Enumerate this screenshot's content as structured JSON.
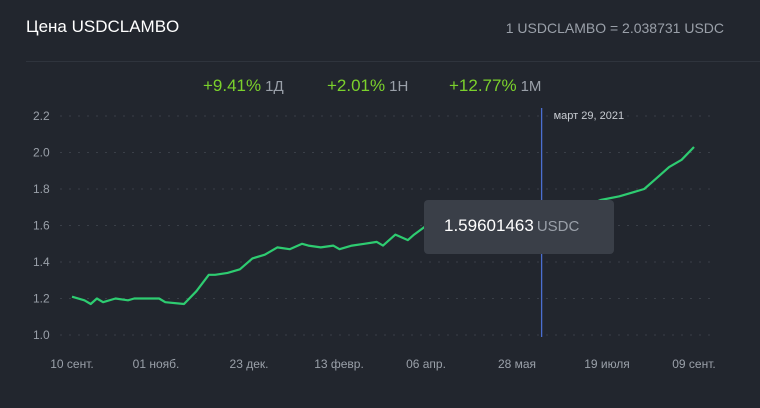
{
  "header": {
    "title": "Цена USDCLAMBO",
    "rate": "1 USDCLAMBO = 2.038731 USDC"
  },
  "changes": [
    {
      "value": "+9.41%",
      "period": "1Д"
    },
    {
      "value": "+2.01%",
      "period": "1Н"
    },
    {
      "value": "+12.77%",
      "period": "1М"
    }
  ],
  "tooltip": {
    "date": "март 29, 2021",
    "price": "1.59601463",
    "unit": "USDC"
  },
  "colors": {
    "background": "#22262e",
    "line": "#2ecc71",
    "positive": "#7bd12c",
    "crosshair": "#4a6fd1",
    "tooltip_bg": "#3a3f48"
  },
  "chart_data": {
    "type": "line",
    "ylim": [
      1.0,
      2.2
    ],
    "yticks": [
      "1.0",
      "1.2",
      "1.4",
      "1.6",
      "1.8",
      "2.0",
      "2.2"
    ],
    "xticks": [
      "10 сент.",
      "01 нояб.",
      "23 дек.",
      "13 февр.",
      "06 апр.",
      "28 мая",
      "19 июля",
      "09 сент."
    ],
    "grid": true,
    "series": [
      {
        "x": [
          0,
          2,
          3,
          4,
          5,
          7,
          9,
          10,
          12,
          14,
          15,
          18,
          20,
          22,
          23,
          25,
          27,
          29,
          31,
          33,
          35,
          37,
          38,
          40,
          42,
          43,
          45,
          47,
          49,
          50,
          52,
          54,
          55,
          57,
          59,
          60,
          62,
          63,
          64,
          66,
          67,
          69,
          71,
          72,
          74,
          75,
          76,
          78,
          80,
          82,
          85,
          88,
          90,
          92,
          94,
          96,
          98,
          100
        ],
        "values": [
          1.21,
          1.19,
          1.17,
          1.2,
          1.18,
          1.2,
          1.19,
          1.2,
          1.2,
          1.2,
          1.18,
          1.17,
          1.24,
          1.33,
          1.33,
          1.34,
          1.36,
          1.42,
          1.44,
          1.48,
          1.47,
          1.5,
          1.49,
          1.48,
          1.49,
          1.47,
          1.49,
          1.5,
          1.51,
          1.49,
          1.55,
          1.52,
          1.55,
          1.6,
          1.61,
          1.6,
          1.61,
          1.58,
          1.57,
          1.58,
          1.57,
          1.58,
          1.58,
          1.57,
          1.59,
          1.58,
          1.6,
          1.62,
          1.66,
          1.7,
          1.74,
          1.76,
          1.78,
          1.8,
          1.86,
          1.92,
          1.96,
          2.03
        ]
      }
    ],
    "crosshair_x": 75.5
  }
}
